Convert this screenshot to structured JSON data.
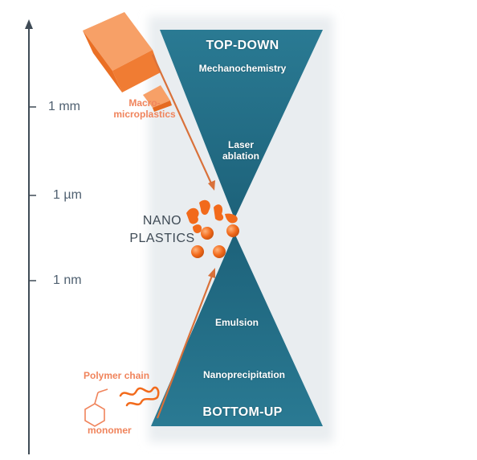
{
  "scale": {
    "ticks": [
      "1 mm",
      "1 µm",
      "1 nm"
    ]
  },
  "top_down": {
    "title": "TOP-DOWN",
    "methods": [
      "Mechanochemistry",
      "Laser\nablation"
    ]
  },
  "bottom_up": {
    "title": "BOTTOM-UP",
    "methods": [
      "Emulsion",
      "Nanoprecipitation"
    ]
  },
  "labels": {
    "macro": "Macro-\nmicroplastics",
    "nano": "NANO\nPLASTICS",
    "polymer_chain": "Polymer chain",
    "monomer": "monomer"
  },
  "colors": {
    "triangle": "#236f87",
    "triangle_dark": "#1b5a6e",
    "orange": "#f47a2e",
    "orange_text": "#f0845c",
    "axis": "#4f6070"
  }
}
